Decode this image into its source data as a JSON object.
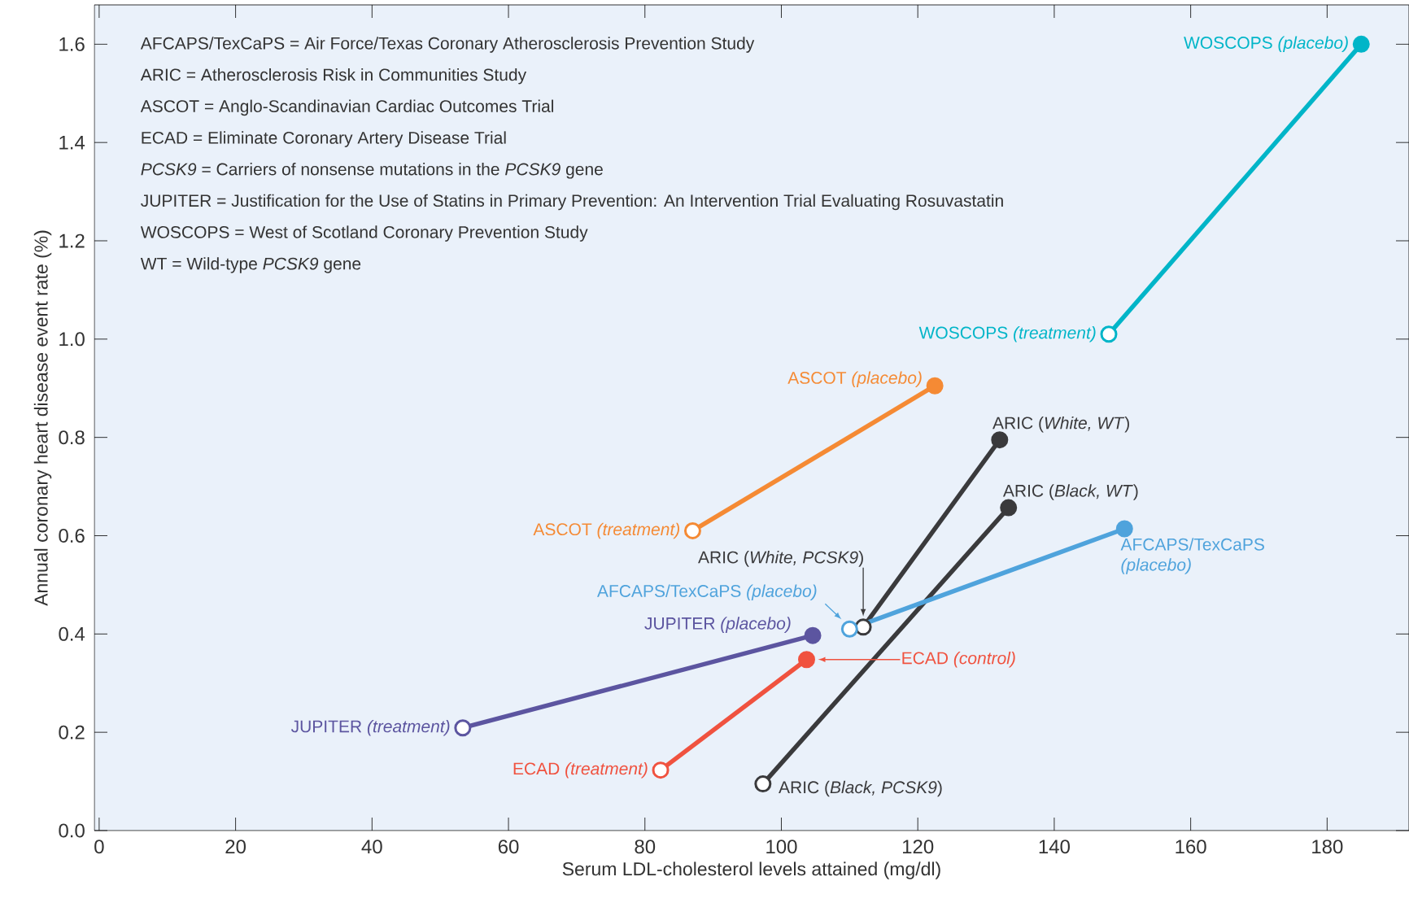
{
  "chart_data": {
    "type": "line",
    "xlabel": "Serum LDL-cholesterol levels attained (mg/dl)",
    "ylabel": "Annual coronary heart disease event rate (%)",
    "xlim": [
      -0.7,
      192
    ],
    "ylim": [
      0,
      1.68
    ],
    "xticks": [
      0,
      20,
      40,
      60,
      80,
      100,
      120,
      140,
      160,
      180
    ],
    "yticks": [
      {
        "value": 0,
        "label": "0.0"
      },
      0.2,
      0.4,
      0.6,
      0.8,
      {
        "value": 1,
        "label": "1.0"
      },
      1.2,
      1.4,
      1.6
    ],
    "marker": "circle",
    "grid": false,
    "series": [
      {
        "color": "#00b5c8",
        "x": [
          148,
          185
        ],
        "values": [
          1.01,
          1.6
        ],
        "colors": [
          "#ffffff",
          "#00b5c8"
        ]
      },
      {
        "color": "#f58a34",
        "x": [
          87,
          122.5
        ],
        "values": [
          0.61,
          0.905
        ],
        "colors": [
          "#ffffff",
          "#f58a34"
        ]
      },
      {
        "color": "#3a3a3c",
        "x": [
          112,
          132
        ],
        "values": [
          0.414,
          0.795
        ],
        "colors": [
          "#ffffff",
          "#3a3a3c"
        ]
      },
      {
        "color": "#3a3a3c",
        "x": [
          97.3,
          133.3
        ],
        "values": [
          0.095,
          0.657
        ],
        "colors": [
          "#ffffff",
          "#3a3a3c"
        ]
      },
      {
        "color": "#4fa3dc",
        "x": [
          110,
          150.3
        ],
        "values": [
          0.41,
          0.614
        ],
        "colors": [
          "#ffffff",
          "#4fa3dc"
        ]
      },
      {
        "color": "#5c55a0",
        "x": [
          53.3,
          104.6
        ],
        "values": [
          0.209,
          0.397
        ],
        "colors": [
          "#ffffff",
          "#5c55a0"
        ]
      },
      {
        "color": "#f0523f",
        "x": [
          82.3,
          103.7
        ],
        "values": [
          0.123,
          0.348
        ],
        "colors": [
          "#ffffff",
          "#f0523f"
        ]
      }
    ],
    "annotations": [
      "AFCAPS/TexCaPS = Air Force/Texas Coronary Atherosclerosis Prevention Study",
      "ARIC = Atherosclerosis Risk in Communities Study",
      "ASCOT = Anglo-Scandinavian Cardiac Outcomes Trial",
      "ECAD = Eliminate Coronary Artery Disease Trial",
      "*PCSK9* = Carriers of nonsense mutations in the *PCSK9* gene",
      "JUPITER = Justification for the Use of Statins in Primary Prevention: An Intervention Trial Evaluating Rosuvastatin",
      "WOSCOPS = West of Scotland Coronary Prevention Study",
      "WT = Wild-type *PCSK9* gene",
      {
        "text": "WOSCOPS *(placebo)*",
        "x": 185,
        "y": 1.6
      },
      {
        "text": "WOSCOPS *(treatment)*",
        "x": 148,
        "y": 1.01
      },
      {
        "text": "ASCOT *(placebo)*",
        "x": 122.5,
        "y": 0.905
      },
      {
        "text": "ASCOT *(treatment)*",
        "x": 87,
        "y": 0.61
      },
      {
        "text": "ARIC (*White, WT*)",
        "x": 132,
        "y": 0.795
      },
      {
        "text": "ARIC (*Black, WT*)",
        "x": 133.3,
        "y": 0.657
      },
      {
        "text": "AFCAPS/TexCaPS *(placebo)*",
        "x": 150.3,
        "y": 0.614
      },
      "ARIC (*White, PCSK9*)",
      {
        "text": "AFCAPS/TexCaPS *(placebo)*",
        "x": 110,
        "y": 0.41
      },
      {
        "text": "JUPITER *(placebo)*",
        "x": 104.6,
        "y": 0.397
      },
      {
        "text": "JUPITER *(treatment)*",
        "x": 53.3,
        "y": 0.209
      },
      "ECAD *(control)*",
      {
        "text": "ECAD *(treatment)*",
        "x": 82.3,
        "y": 0.123
      },
      {
        "text": "ARIC (*Black, PCSK9*)",
        "x": 97.3,
        "y": 0.095
      }
    ]
  }
}
